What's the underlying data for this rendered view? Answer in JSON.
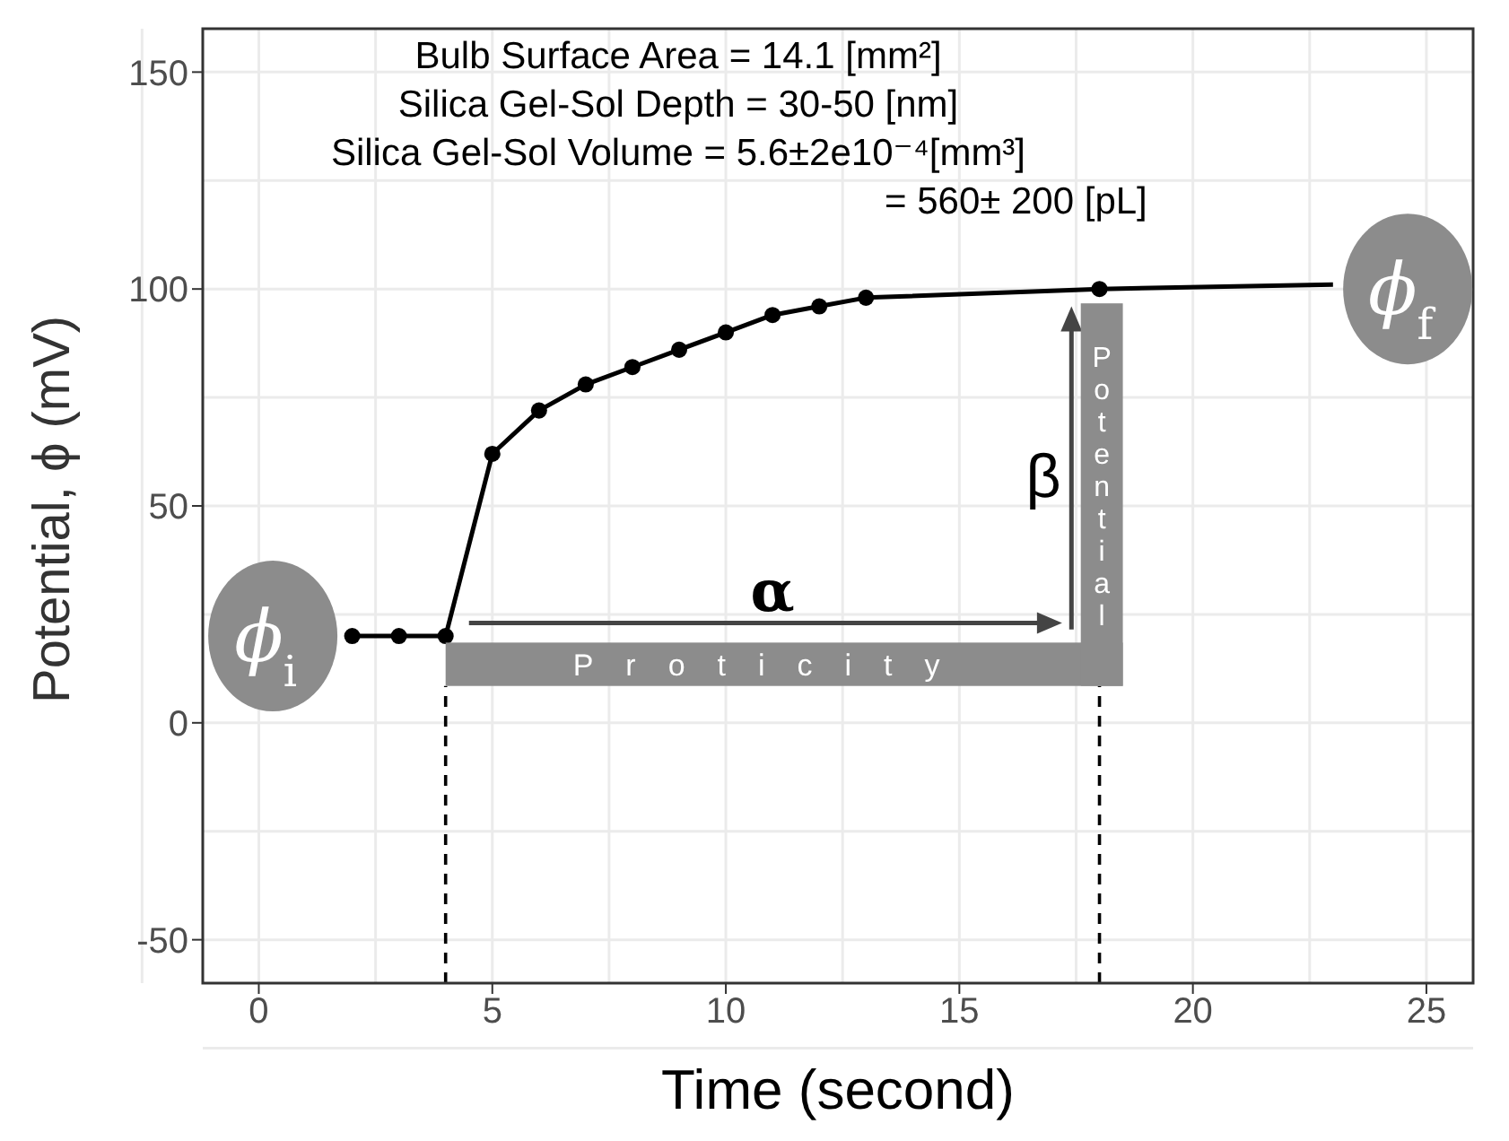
{
  "chart_data": {
    "type": "line",
    "xlabel": "Time (second)",
    "ylabel": "Potential, ϕ (mV)",
    "xlim": [
      -1.2,
      26
    ],
    "ylim": [
      -60,
      160
    ],
    "xticks": [
      0,
      5,
      10,
      15,
      20,
      25
    ],
    "yticks": [
      -50,
      0,
      50,
      100,
      150
    ],
    "grid": true,
    "series": [
      {
        "color": "#000000",
        "marker": "none",
        "x": [
          1.9,
          2,
          3,
          4,
          5,
          6,
          7,
          8,
          9,
          10,
          11,
          12,
          13,
          18,
          23
        ],
        "values": [
          20,
          20,
          20,
          20,
          62,
          72,
          78,
          82,
          86,
          90,
          94,
          96,
          98,
          100,
          101
        ]
      },
      {
        "type": "scatter",
        "color": "#000000",
        "marker": "circle",
        "x": [
          2,
          3,
          4,
          5,
          6,
          7,
          8,
          9,
          10,
          11,
          12,
          13,
          18
        ],
        "values": [
          20,
          20,
          20,
          62,
          72,
          78,
          82,
          86,
          90,
          94,
          96,
          98,
          100
        ]
      }
    ],
    "ref_lines": [
      {
        "axis": "x",
        "value": 4,
        "line_style": "dashed",
        "color": "#000000"
      },
      {
        "axis": "x",
        "value": 18,
        "line_style": "dashed",
        "color": "#000000"
      }
    ],
    "annotations": [
      "Bulb Surface Area = 14.1 [mm²]",
      "Silica Gel-Sol Depth = 30-50 [nm]",
      "Silica Gel-Sol Volume = 5.6±2e10⁻⁴[mm³]",
      "= 560± 200 [pL]",
      "ϕ$_{i}$",
      "ϕ$_{f}$",
      "α",
      "β",
      "Proticity",
      "Potential"
    ]
  }
}
